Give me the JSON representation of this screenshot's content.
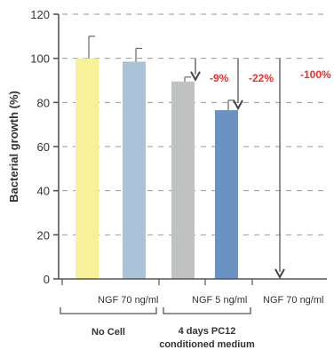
{
  "chart_data": {
    "type": "bar",
    "ylabel": "Bacterial growth (%)",
    "ylim": [
      0,
      120
    ],
    "yticks": [
      0,
      20,
      40,
      60,
      80,
      100,
      120
    ],
    "grid": "dashed horizontal",
    "bars": [
      {
        "value": 100,
        "error": 10,
        "color": "#f7f199"
      },
      {
        "value": 98.5,
        "error": 6,
        "color": "#abc3d9"
      },
      {
        "value": 89.5,
        "error": 2,
        "color": "#c0c1c1"
      },
      {
        "value": 76.5,
        "error": 4.5,
        "color": "#6a93c4"
      },
      {
        "value": 0,
        "error": 0,
        "color": "#ffffff"
      }
    ],
    "category_labels": [
      {
        "text": "NGF 70 ng/ml",
        "under": 1
      },
      {
        "text": "NGF 5 ng/ml",
        "under": 3
      },
      {
        "text": "NGF 70 ng/ml",
        "under": 4
      }
    ],
    "groups": [
      {
        "lines": [
          "No Cell"
        ],
        "from": 0,
        "to": 1
      },
      {
        "lines": [
          "4 days PC12",
          "conditioned medium"
        ],
        "from": 2,
        "to": 4
      }
    ],
    "arrows": [
      {
        "bar": 2,
        "from": 100,
        "to": 89.5
      },
      {
        "bar": 3,
        "from": 100,
        "to": 76.5
      },
      {
        "bar": 4,
        "from": 100,
        "to": 0
      }
    ],
    "annotations": [
      {
        "text": "-9%",
        "near_bar": 2
      },
      {
        "text": "-22%",
        "near_bar": 3
      },
      {
        "text": "-100%",
        "near_bar": 4
      }
    ],
    "annotation_color": "#e8312c"
  }
}
